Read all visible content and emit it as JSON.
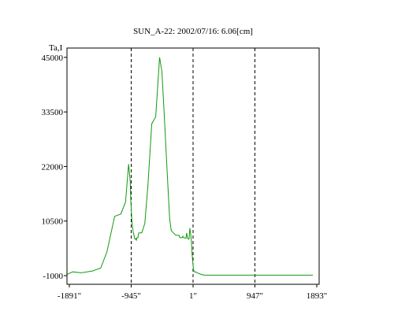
{
  "chart_data": {
    "type": "line",
    "title": "SUN_A-22: 2002/07/16: 6.06[cm]",
    "ylabel": "Ta,I",
    "xlabel": "",
    "x_ticks": [
      "-1891\"",
      "-945\"",
      "1\"",
      "947\"",
      "1893\""
    ],
    "x_tick_values": [
      -1891,
      -945,
      1,
      947,
      1893
    ],
    "y_ticks": [
      "45000",
      "33500",
      "22000",
      "10500",
      "-1000"
    ],
    "y_tick_values": [
      45000,
      33500,
      22000,
      10500,
      -1000
    ],
    "xlim": [
      -1891,
      1893
    ],
    "ylim": [
      -1000,
      46800
    ],
    "grid": false,
    "vertical_reference_lines": [
      -945,
      1,
      947
    ],
    "series": [
      {
        "color": "#109910",
        "x": [
          -2000,
          -1933,
          -1838,
          -1719,
          -1659,
          -1529,
          -1494,
          -1411,
          -1316,
          -1198,
          -1103,
          -1032,
          -985,
          -961,
          -950,
          -934,
          -922,
          -912,
          -902,
          -896,
          -890,
          -884,
          -878,
          -872,
          -866,
          -855,
          -843,
          -831,
          -808,
          -784,
          -736,
          -689,
          -630,
          -570,
          -511,
          -475,
          -440,
          -392,
          -357,
          -333,
          -298,
          -262,
          -238,
          -214,
          -203,
          -191,
          -179,
          -167,
          -156,
          -144,
          -132,
          -120,
          -108,
          -97,
          -85,
          -73,
          -61,
          -49,
          -38,
          -26,
          -14,
          -2,
          10,
          21,
          33,
          45,
          57,
          69,
          80,
          92,
          104,
          116,
          128,
          140,
          151,
          163,
          175,
          199,
          234,
          282,
          318,
          365,
          412,
          460,
          495,
          542,
          590,
          614,
          637,
          685,
          732,
          779,
          839,
          851,
          875,
          898,
          910,
          922,
          934,
          946,
          957,
          969,
          981,
          1005,
          1028,
          1052,
          1088,
          1147,
          1206,
          1301,
          1408,
          1538,
          1633,
          1716,
          1774,
          1834
        ],
        "y": [
          -700,
          -700,
          -200,
          -400,
          -300,
          0,
          200,
          600,
          4000,
          11500,
          12000,
          14500,
          22500,
          19000,
          14500,
          10500,
          9000,
          8000,
          7500,
          7000,
          6700,
          6700,
          6700,
          6800,
          6500,
          7000,
          7000,
          8000,
          8000,
          8000,
          10000,
          18000,
          31000,
          32500,
          45000,
          42000,
          33000,
          20000,
          11000,
          8500,
          8000,
          7500,
          7500,
          7500,
          7000,
          7000,
          7000,
          7000,
          7300,
          7000,
          7000,
          6900,
          6900,
          8000,
          7000,
          6700,
          6700,
          9000,
          8000,
          6500,
          3500,
          1500,
          0,
          0,
          -300,
          -300,
          -300,
          -400,
          -500,
          -600,
          -600,
          -700,
          -800,
          -800,
          -800,
          -900,
          -900,
          -900,
          -900,
          -900,
          -900,
          -900,
          -900,
          -900,
          -900,
          -900,
          -900,
          -900,
          -900,
          -900,
          -900,
          -900,
          -900,
          -900,
          -900,
          -900,
          -900,
          -900,
          -900,
          -900,
          -900,
          -900,
          -900,
          -900,
          -900,
          -900,
          -900,
          -900,
          -900,
          -900,
          -900,
          -900,
          -900,
          -900,
          -900,
          -900
        ]
      }
    ]
  }
}
